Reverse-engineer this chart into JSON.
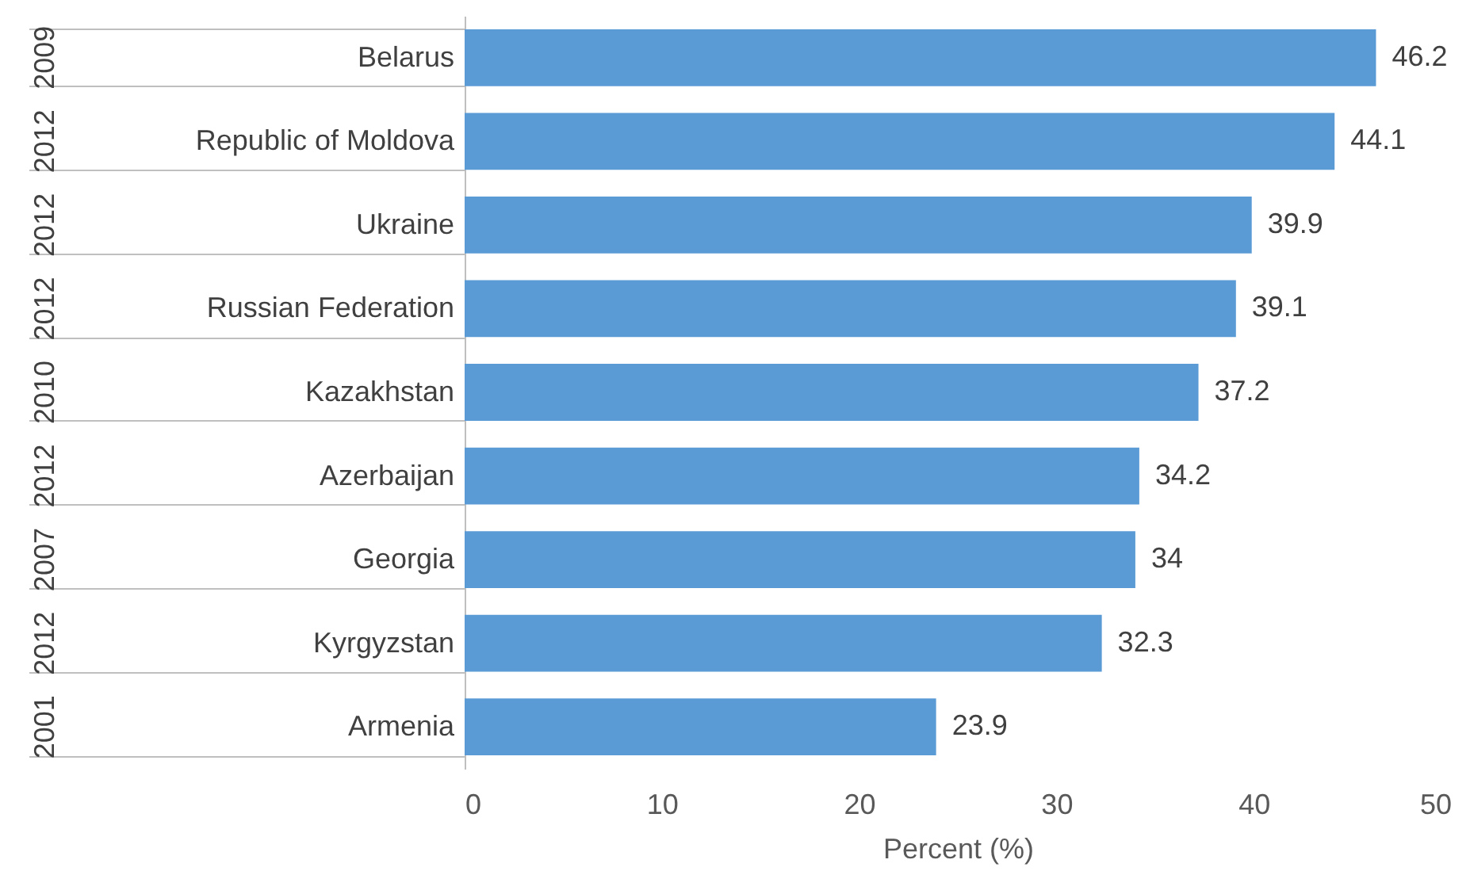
{
  "chart_data": {
    "type": "bar",
    "orientation": "horizontal",
    "xlabel": "Percent (%)",
    "categories": [
      "Belarus",
      "Republic of  Moldova",
      "Ukraine",
      "Russian Federation",
      "Kazakhstan",
      "Azerbaijan",
      "Georgia",
      "Kyrgyzstan",
      "Armenia"
    ],
    "values": [
      46.2,
      44.1,
      39.9,
      39.1,
      37.2,
      34.2,
      34,
      32.3,
      23.9
    ],
    "color": "#5b9bd5",
    "xlim": [
      0,
      50
    ],
    "xticks": [
      0,
      10,
      20,
      30,
      40,
      50
    ],
    "data_labels": true,
    "grid": false,
    "annotations": [
      "2009",
      "2012",
      "2012",
      "2012",
      "2010",
      "2012",
      "2007",
      "2012",
      "2001"
    ]
  }
}
